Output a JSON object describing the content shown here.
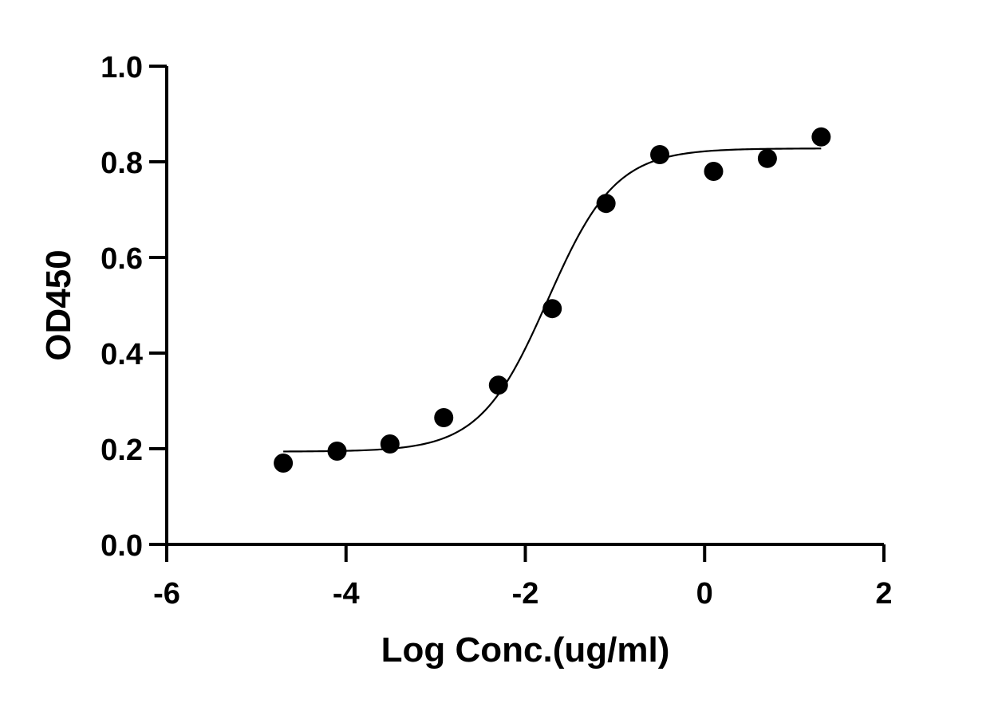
{
  "chart_data": {
    "type": "scatter",
    "xlabel": "Log Conc.(ug/ml)",
    "ylabel": "OD450",
    "xlim": [
      -6,
      2
    ],
    "ylim": [
      0.0,
      1.0
    ],
    "xticks": [
      -6,
      -4,
      -2,
      0,
      2
    ],
    "xtick_labels": [
      "-6",
      "-4",
      "-2",
      "0",
      "2"
    ],
    "yticks": [
      0.0,
      0.2,
      0.4,
      0.6,
      0.8,
      1.0
    ],
    "ytick_labels": [
      "0.0",
      "0.2",
      "0.4",
      "0.6",
      "0.8",
      "1.0"
    ],
    "grid": false,
    "series": [
      {
        "x": [
          -4.7,
          -4.1,
          -3.51,
          -2.91,
          -2.3,
          -1.7,
          -1.1,
          -0.5,
          0.1,
          0.7,
          1.3
        ],
        "y": [
          0.17,
          0.195,
          0.21,
          0.265,
          0.333,
          0.493,
          0.713,
          0.815,
          0.78,
          0.807,
          0.852
        ],
        "marker": "filled-circle",
        "color": "#000000"
      }
    ],
    "fit": {
      "model": "4PL sigmoid",
      "bottom": 0.194,
      "top": 0.828,
      "log_ec50": -1.75,
      "hill_slope": 1.15,
      "x_range": [
        -4.7,
        1.3
      ],
      "color": "#000000"
    }
  }
}
